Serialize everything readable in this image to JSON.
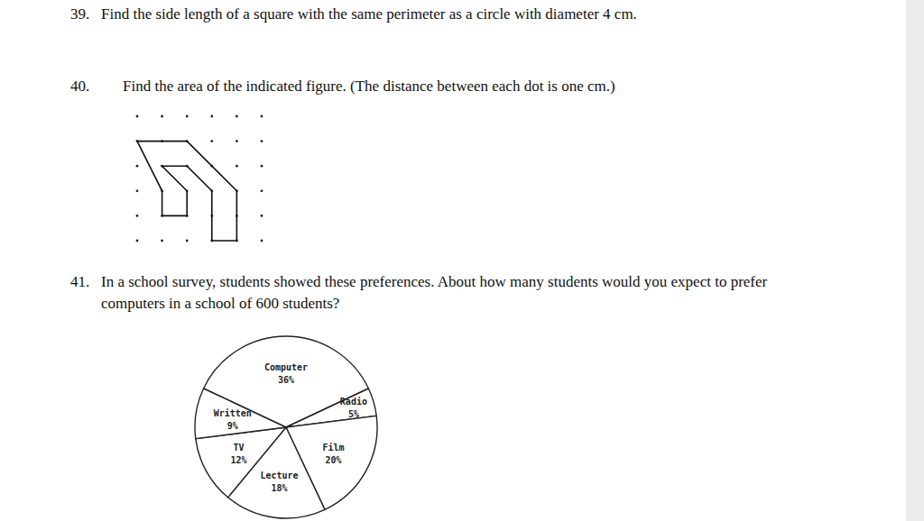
{
  "questions": [
    {
      "number": "39.",
      "lines": [
        "Find the side length of a square with the same perimeter as a circle with diameter 4 cm."
      ]
    },
    {
      "number": "40.",
      "lines": [
        "Find the area of the indicated figure. (The distance between each dot is one cm.)"
      ]
    },
    {
      "number": "41.",
      "lines": [
        "In a school survey, students showed these preferences.  About how many students would you expect to prefer",
        "computers in a school of 600 students?"
      ]
    }
  ],
  "chart_data": {
    "type": "pie",
    "categories": [
      "Computer",
      "Radio",
      "Film",
      "Lecture",
      "TV",
      "Written"
    ],
    "values": [
      36,
      5,
      20,
      18,
      12,
      9
    ],
    "value_labels": [
      "36%",
      "5%",
      "20%",
      "18%",
      "12%",
      "9%"
    ],
    "data_labels": true
  }
}
